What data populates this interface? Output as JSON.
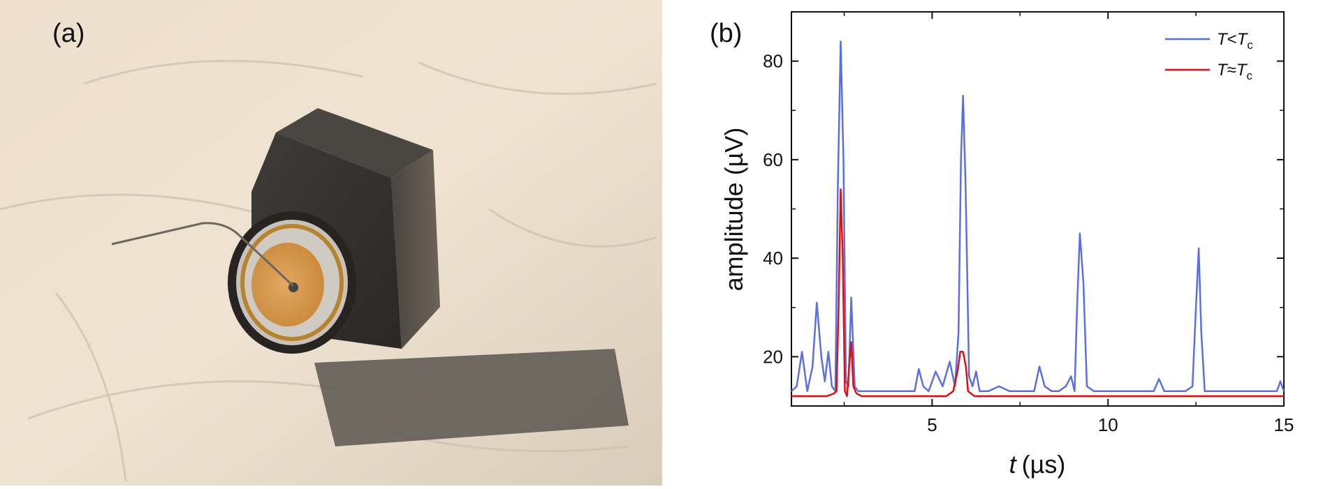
{
  "panels": {
    "a_label": "(a)",
    "b_label": "(b)"
  },
  "colors": {
    "below_tc": "#5b6fe0",
    "near_tc": "#e01010"
  },
  "chart_data": {
    "type": "line",
    "title": "",
    "xlabel_var": "t",
    "xlabel_unit": "(µs)",
    "ylabel": "amplitude (µV)",
    "xlim": [
      1,
      15
    ],
    "ylim": [
      10,
      90
    ],
    "xticks": [
      5,
      10,
      15
    ],
    "yticks": [
      20,
      40,
      60,
      80
    ],
    "grid": false,
    "legend_position": "top-right",
    "series": [
      {
        "legend_var": "T",
        "legend_rel": "<",
        "legend_sub_var": "T",
        "legend_sub": "c",
        "color": "#5b6fe0",
        "x": [
          1.0,
          1.15,
          1.3,
          1.45,
          1.6,
          1.72,
          1.85,
          1.95,
          2.05,
          2.15,
          2.25,
          2.32,
          2.4,
          2.48,
          2.55,
          2.62,
          2.7,
          2.8,
          2.9,
          3.0,
          3.3,
          3.6,
          3.9,
          4.2,
          4.5,
          4.62,
          4.75,
          4.9,
          5.1,
          5.3,
          5.5,
          5.65,
          5.75,
          5.82,
          5.88,
          5.95,
          6.05,
          6.15,
          6.25,
          6.35,
          6.6,
          6.9,
          7.2,
          7.6,
          7.9,
          8.05,
          8.2,
          8.4,
          8.6,
          8.8,
          8.95,
          9.05,
          9.12,
          9.2,
          9.3,
          9.4,
          9.6,
          10.0,
          10.5,
          11.0,
          11.3,
          11.45,
          11.6,
          11.9,
          12.2,
          12.4,
          12.5,
          12.58,
          12.65,
          12.75,
          12.9,
          13.2,
          13.6,
          14.0,
          14.4,
          14.8,
          14.9,
          15.0
        ],
        "y": [
          13,
          14,
          21,
          13,
          18,
          31,
          20,
          15,
          21,
          14,
          13,
          55,
          84,
          60,
          15,
          14,
          32,
          14,
          13,
          13,
          13,
          13,
          13,
          13,
          13,
          17.5,
          14,
          13,
          17,
          14,
          19,
          14,
          25,
          60,
          73,
          55,
          16,
          14,
          17,
          13,
          13,
          14,
          13,
          13,
          13,
          18,
          14,
          13,
          13,
          14,
          16,
          13,
          30,
          45,
          35,
          14,
          13,
          13,
          13,
          13,
          13,
          15.5,
          13,
          13,
          13,
          14,
          30,
          42,
          25,
          13,
          13,
          13,
          13,
          13,
          13,
          13,
          15,
          13
        ]
      },
      {
        "legend_var": "T",
        "legend_rel": "≈",
        "legend_sub_var": "T",
        "legend_sub": "c",
        "color": "#e01010",
        "x": [
          1.0,
          1.5,
          2.0,
          2.2,
          2.28,
          2.34,
          2.4,
          2.46,
          2.52,
          2.58,
          2.64,
          2.7,
          2.76,
          2.85,
          3.0,
          3.5,
          4.0,
          4.5,
          5.0,
          5.4,
          5.6,
          5.72,
          5.8,
          5.88,
          5.96,
          6.02,
          6.2,
          7.0,
          8.0,
          9.0,
          10.0,
          11.0,
          12.0,
          13.0,
          14.0,
          15.0
        ],
        "y": [
          12,
          12,
          12,
          12.5,
          13,
          30,
          54,
          40,
          13,
          12,
          18,
          23,
          14,
          12.5,
          12,
          12,
          12,
          12,
          12,
          12,
          13,
          17,
          21,
          21,
          18,
          13,
          12,
          12,
          12,
          12,
          12,
          12,
          12,
          12,
          12,
          12
        ]
      }
    ]
  }
}
